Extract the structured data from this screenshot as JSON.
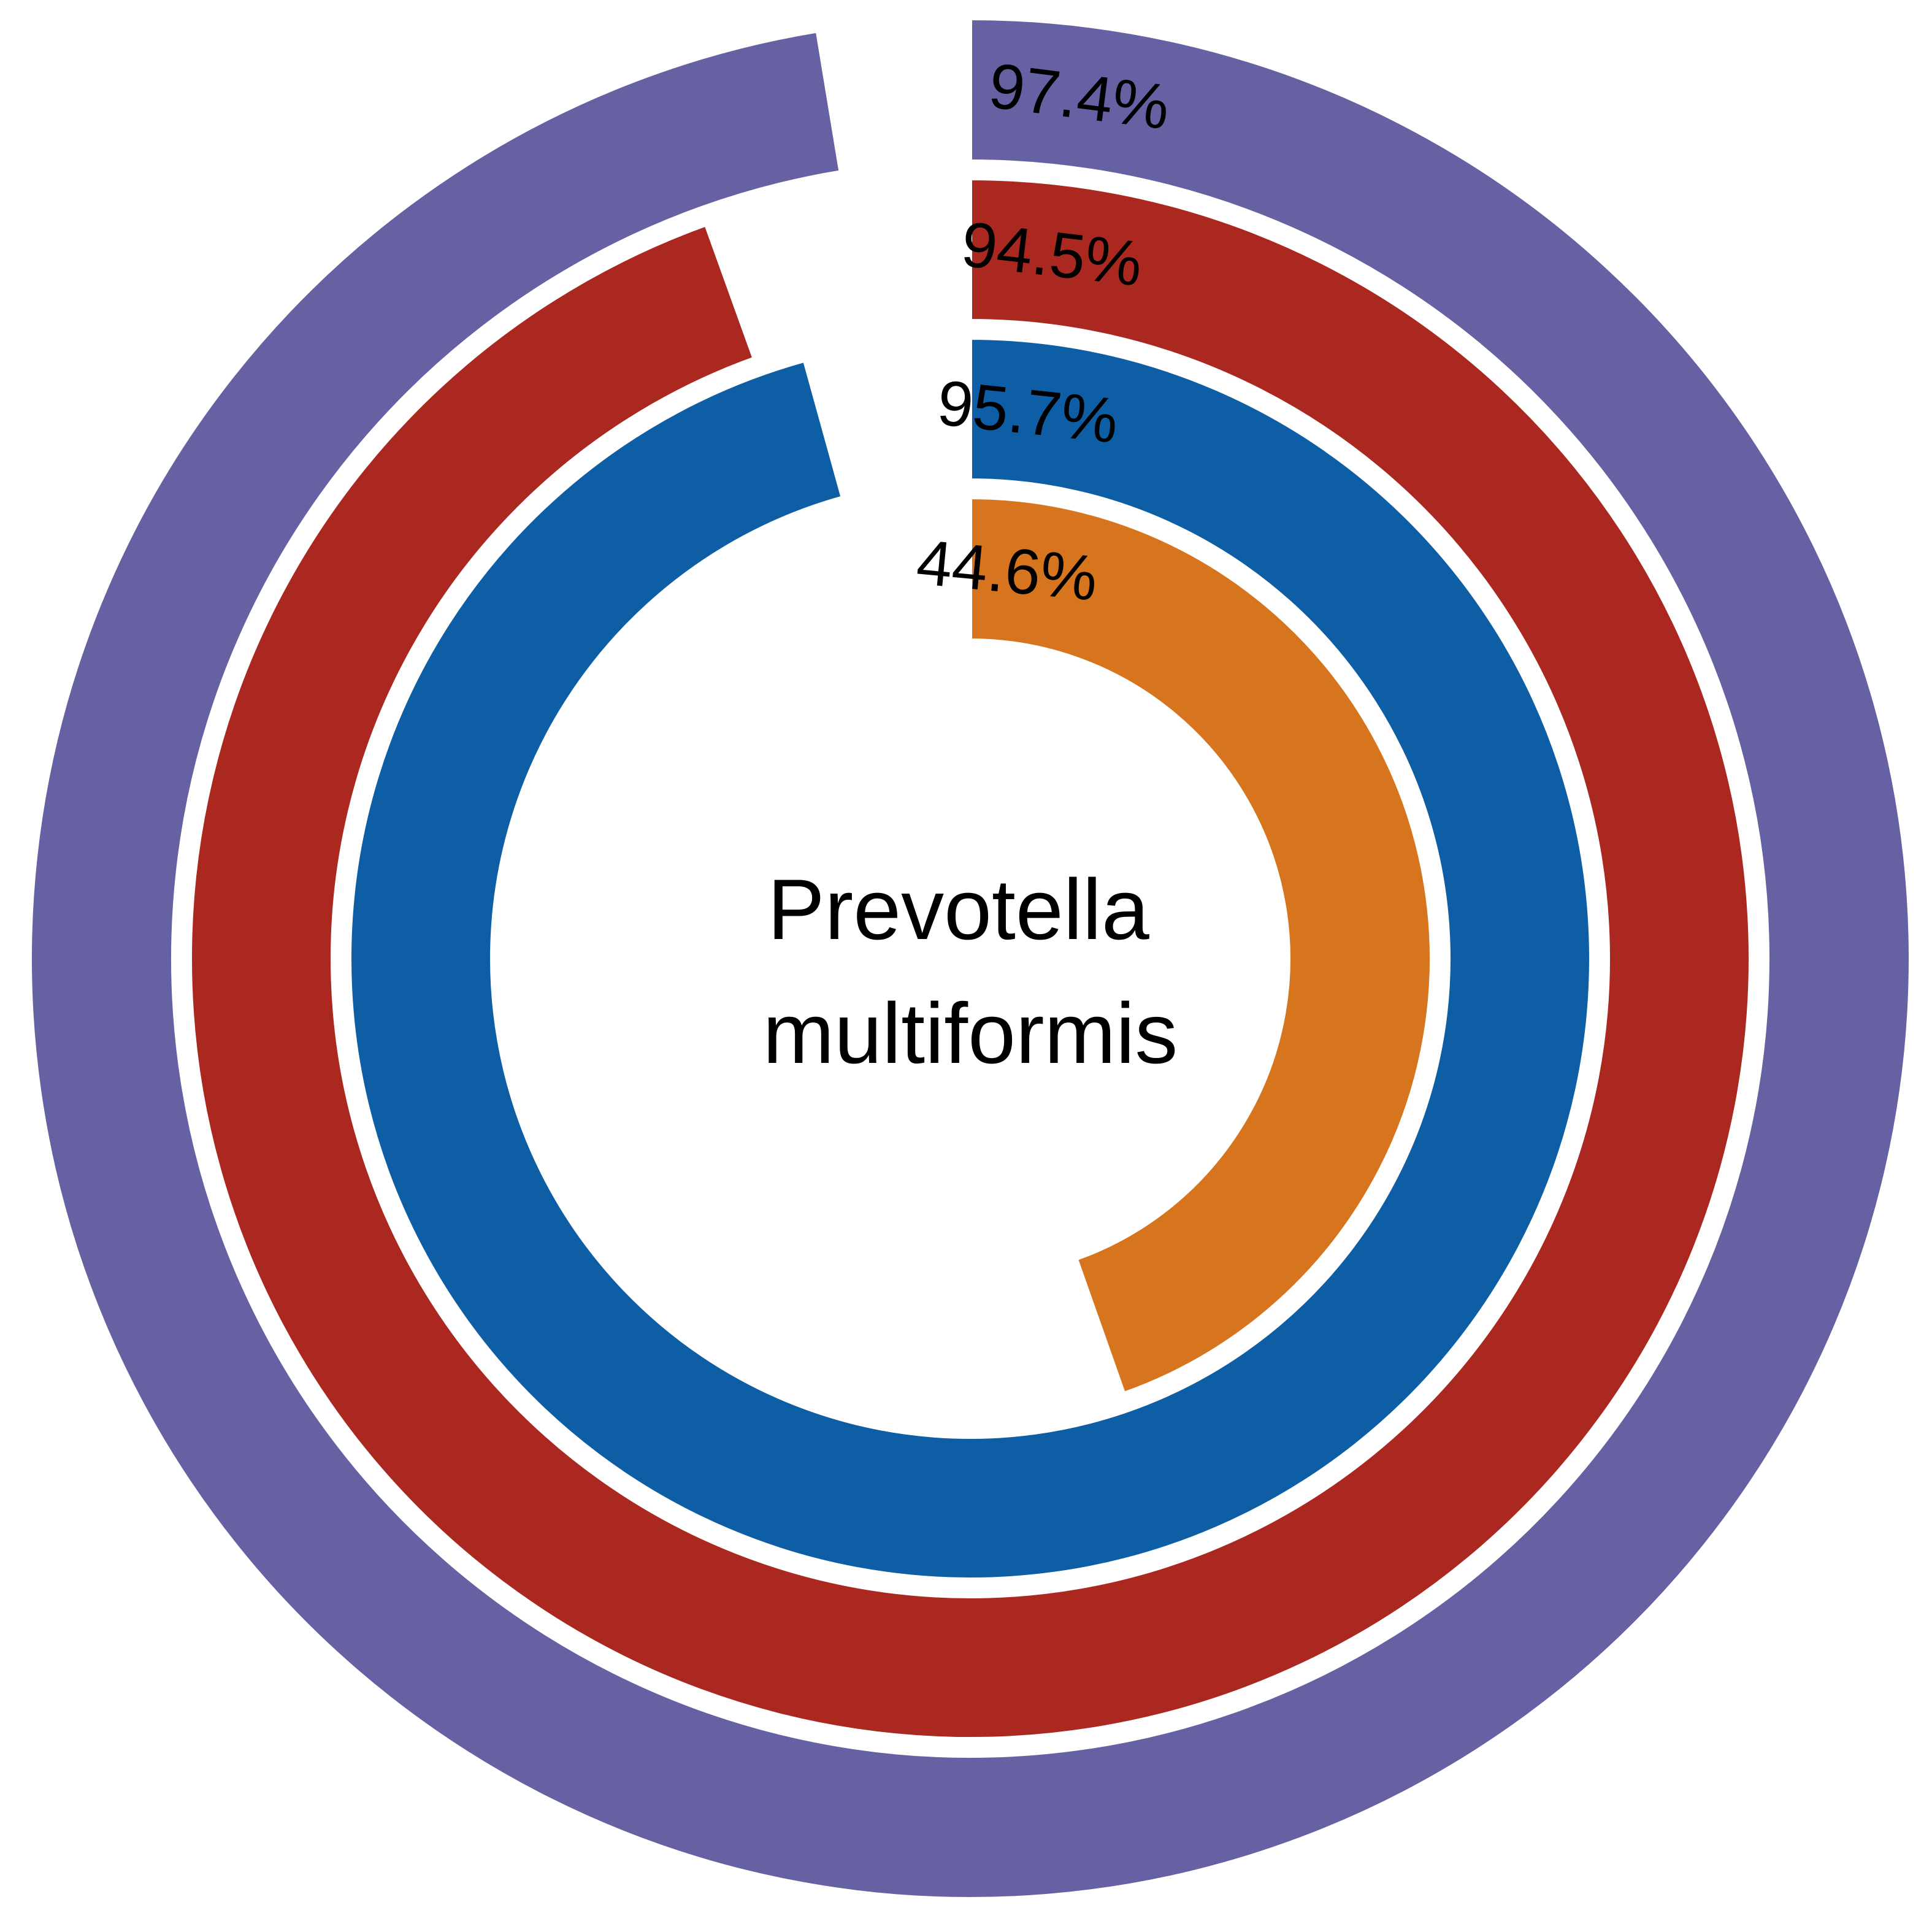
{
  "chart_data": {
    "type": "radial_bar",
    "title": "Prevotella multiformis",
    "title_lines": [
      "Prevotella",
      "multiformis"
    ],
    "unit": "%",
    "max": 100,
    "series": [
      {
        "label": "97.4%",
        "value": 97.4,
        "color": "#6661a2"
      },
      {
        "label": "94.5%",
        "value": 94.5,
        "color": "#ab2820"
      },
      {
        "label": "95.7%",
        "value": 95.7,
        "color": "#0e5ea6"
      },
      {
        "label": "44.6%",
        "value": 44.6,
        "color": "#d7751e"
      }
    ],
    "start": "top",
    "direction": "clockwise",
    "background": "#ffffff"
  }
}
